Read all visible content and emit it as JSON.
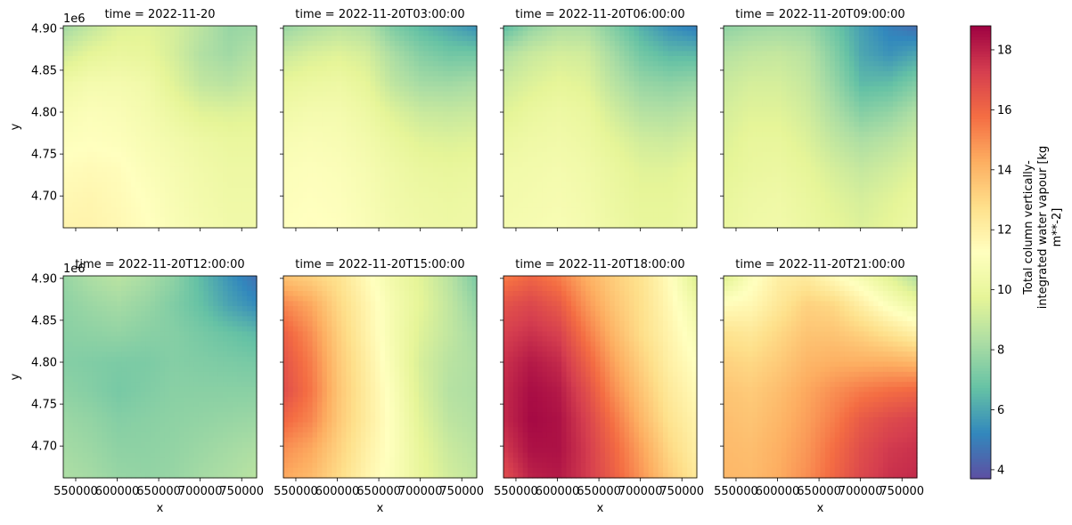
{
  "chart_data": {
    "type": "heatmap",
    "xlabel": "x",
    "ylabel": "y",
    "x_ticks": [
      "550000",
      "600000",
      "650000",
      "700000",
      "750000"
    ],
    "x_tick_values": [
      550000,
      600000,
      650000,
      700000,
      750000
    ],
    "y_ticks": [
      "4.70",
      "4.75",
      "4.80",
      "4.85",
      "4.90"
    ],
    "y_tick_values": [
      4.7,
      4.75,
      4.8,
      4.85,
      4.9
    ],
    "y_offset_label": "1e6",
    "xlim": [
      535000,
      768000
    ],
    "ylim": [
      4.662,
      4.903
    ],
    "colorbar": {
      "label": "Total column vertically-integrated water vapour [kg m**-2]",
      "label_lines": [
        "Total column vertically-",
        "integrated water vapour [kg",
        "m**-2]"
      ],
      "ticks": [
        "4",
        "6",
        "8",
        "10",
        "12",
        "14",
        "16",
        "18"
      ],
      "tick_values": [
        4,
        6,
        8,
        10,
        12,
        14,
        16,
        18
      ],
      "range": [
        3.7,
        18.8
      ],
      "colormap": "Spectral_r"
    },
    "panels": [
      {
        "title": "time = 2022-11-20",
        "values": [
          [
            8.0,
            8.8,
            9.5,
            9.6,
            9.3,
            8.6,
            7.8,
            7.9
          ],
          [
            9.2,
            9.8,
            10.0,
            9.9,
            9.3,
            8.4,
            8.0,
            8.5
          ],
          [
            10.3,
            10.6,
            10.6,
            10.4,
            9.6,
            8.8,
            8.6,
            9.0
          ],
          [
            10.8,
            11.0,
            10.9,
            10.6,
            10.1,
            9.6,
            9.5,
            9.6
          ],
          [
            11.1,
            11.2,
            11.1,
            10.8,
            10.5,
            10.2,
            10.0,
            10.0
          ],
          [
            11.4,
            11.5,
            11.4,
            11.0,
            10.7,
            10.4,
            10.2,
            10.2
          ],
          [
            11.6,
            11.7,
            11.5,
            11.2,
            10.8,
            10.5,
            10.3,
            10.3
          ],
          [
            11.8,
            11.8,
            11.6,
            11.3,
            10.9,
            10.6,
            10.4,
            10.4
          ]
        ]
      },
      {
        "title": "time = 2022-11-20T03:00:00",
        "values": [
          [
            7.8,
            8.3,
            8.6,
            8.4,
            7.2,
            6.5,
            6.0,
            5.4
          ],
          [
            9.0,
            9.4,
            9.6,
            9.3,
            8.2,
            7.4,
            7.0,
            7.0
          ],
          [
            9.9,
            10.1,
            10.2,
            9.8,
            8.7,
            8.1,
            8.0,
            8.2
          ],
          [
            10.4,
            10.6,
            10.6,
            10.2,
            9.5,
            9.0,
            8.9,
            9.0
          ],
          [
            10.8,
            10.9,
            10.8,
            10.5,
            10.0,
            9.6,
            9.5,
            9.6
          ],
          [
            11.0,
            11.1,
            11.0,
            10.7,
            10.3,
            10.0,
            9.9,
            10.0
          ],
          [
            11.1,
            11.2,
            11.1,
            10.8,
            10.4,
            10.2,
            10.1,
            10.2
          ],
          [
            11.2,
            11.3,
            11.2,
            10.9,
            10.5,
            10.3,
            10.2,
            10.3
          ]
        ]
      },
      {
        "title": "time = 2022-11-20T06:00:00",
        "values": [
          [
            6.5,
            7.7,
            8.3,
            8.3,
            7.3,
            6.2,
            5.4,
            4.9
          ],
          [
            8.4,
            9.0,
            9.3,
            9.2,
            8.1,
            7.0,
            6.5,
            6.5
          ],
          [
            9.1,
            9.5,
            9.8,
            9.6,
            8.6,
            7.8,
            7.6,
            7.8
          ],
          [
            9.6,
            10.0,
            10.2,
            10.0,
            9.2,
            8.5,
            8.4,
            8.7
          ],
          [
            10.1,
            10.3,
            10.4,
            10.2,
            9.7,
            9.2,
            9.1,
            9.4
          ],
          [
            10.4,
            10.5,
            10.6,
            10.4,
            10.0,
            9.6,
            9.6,
            9.9
          ],
          [
            10.5,
            10.6,
            10.7,
            10.5,
            10.1,
            9.8,
            9.8,
            10.1
          ],
          [
            10.6,
            10.7,
            10.8,
            10.6,
            10.2,
            9.9,
            9.9,
            10.2
          ]
        ]
      },
      {
        "title": "time = 2022-11-20T09:00:00",
        "values": [
          [
            7.6,
            7.9,
            8.0,
            7.9,
            6.9,
            5.8,
            5.0,
            4.5
          ],
          [
            8.5,
            8.8,
            8.9,
            8.6,
            7.4,
            6.0,
            5.5,
            6.0
          ],
          [
            9.0,
            9.3,
            9.3,
            8.9,
            7.8,
            6.5,
            6.6,
            7.3
          ],
          [
            9.3,
            9.6,
            9.6,
            9.2,
            8.3,
            7.4,
            7.7,
            8.4
          ],
          [
            9.5,
            9.9,
            9.9,
            9.5,
            8.8,
            8.3,
            8.6,
            9.1
          ],
          [
            9.7,
            10.0,
            10.1,
            9.8,
            9.3,
            8.9,
            9.2,
            9.6
          ],
          [
            9.9,
            10.2,
            10.3,
            10.0,
            9.6,
            9.3,
            9.6,
            10.0
          ],
          [
            10.0,
            10.3,
            10.4,
            10.1,
            9.8,
            9.5,
            9.8,
            10.2
          ]
        ]
      },
      {
        "title": "time = 2022-11-20T12:00:00",
        "values": [
          [
            7.8,
            8.3,
            8.6,
            8.2,
            7.6,
            6.5,
            5.5,
            4.6
          ],
          [
            7.6,
            7.9,
            8.1,
            7.8,
            7.3,
            6.7,
            5.9,
            5.3
          ],
          [
            7.5,
            7.6,
            7.7,
            7.5,
            7.4,
            7.1,
            6.8,
            6.5
          ],
          [
            7.4,
            7.3,
            7.2,
            7.2,
            7.4,
            7.3,
            7.2,
            7.1
          ],
          [
            7.6,
            7.4,
            7.1,
            7.3,
            7.5,
            7.5,
            7.5,
            7.5
          ],
          [
            7.9,
            7.7,
            7.4,
            7.5,
            7.6,
            7.7,
            7.8,
            7.9
          ],
          [
            8.1,
            7.9,
            7.6,
            7.6,
            7.7,
            7.9,
            8.1,
            8.3
          ],
          [
            8.3,
            8.1,
            7.8,
            7.7,
            7.8,
            8.1,
            8.3,
            8.6
          ]
        ]
      },
      {
        "title": "time = 2022-11-20T15:00:00",
        "values": [
          [
            13.6,
            13.2,
            12.6,
            11.5,
            10.4,
            9.6,
            8.6,
            7.2
          ],
          [
            15.2,
            14.4,
            13.0,
            11.8,
            10.6,
            9.7,
            8.8,
            7.7
          ],
          [
            16.2,
            15.0,
            13.3,
            11.9,
            10.6,
            9.5,
            8.8,
            8.1
          ],
          [
            16.6,
            15.4,
            13.5,
            12.1,
            10.7,
            9.3,
            8.6,
            8.3
          ],
          [
            16.8,
            15.6,
            13.6,
            12.2,
            10.9,
            9.4,
            8.5,
            8.3
          ],
          [
            16.0,
            15.2,
            13.5,
            12.2,
            11.0,
            9.6,
            8.7,
            8.4
          ],
          [
            15.0,
            14.4,
            13.2,
            12.0,
            11.0,
            9.8,
            9.0,
            8.6
          ],
          [
            14.4,
            13.9,
            12.9,
            11.8,
            10.9,
            9.9,
            9.2,
            8.8
          ]
        ]
      },
      {
        "title": "time = 2022-11-20T18:00:00",
        "values": [
          [
            15.4,
            16.0,
            15.4,
            14.2,
            13.3,
            12.6,
            11.4,
            9.4
          ],
          [
            16.6,
            17.0,
            16.4,
            14.8,
            13.6,
            12.7,
            11.6,
            10.3
          ],
          [
            17.2,
            17.6,
            17.2,
            15.5,
            14.0,
            12.8,
            11.8,
            10.8
          ],
          [
            17.6,
            18.2,
            17.8,
            16.2,
            14.5,
            13.2,
            12.0,
            11.2
          ],
          [
            17.8,
            18.5,
            18.2,
            16.8,
            15.0,
            13.6,
            12.3,
            11.5
          ],
          [
            17.8,
            18.6,
            18.4,
            17.2,
            15.6,
            14.0,
            12.6,
            11.8
          ],
          [
            17.4,
            18.4,
            18.4,
            17.4,
            16.0,
            14.5,
            13.0,
            12.0
          ],
          [
            16.8,
            18.0,
            18.2,
            17.4,
            16.2,
            14.8,
            13.4,
            12.3
          ]
        ]
      },
      {
        "title": "time = 2022-11-20T21:00:00",
        "values": [
          [
            9.4,
            11.0,
            12.0,
            12.2,
            11.4,
            10.6,
            9.6,
            8.4
          ],
          [
            11.4,
            11.6,
            12.4,
            13.2,
            13.0,
            12.0,
            11.0,
            10.2
          ],
          [
            12.6,
            12.4,
            13.0,
            13.6,
            13.6,
            13.2,
            12.6,
            12.0
          ],
          [
            13.2,
            13.0,
            13.4,
            14.0,
            14.2,
            14.2,
            14.2,
            14.0
          ],
          [
            13.6,
            13.4,
            13.8,
            14.4,
            15.0,
            15.5,
            15.8,
            16.0
          ],
          [
            13.8,
            13.6,
            14.0,
            14.6,
            15.4,
            16.4,
            16.9,
            17.2
          ],
          [
            13.9,
            13.8,
            14.2,
            14.8,
            15.8,
            16.8,
            17.4,
            17.6
          ],
          [
            14.0,
            13.9,
            14.3,
            15.0,
            16.0,
            17.0,
            17.6,
            17.8
          ]
        ]
      }
    ]
  }
}
